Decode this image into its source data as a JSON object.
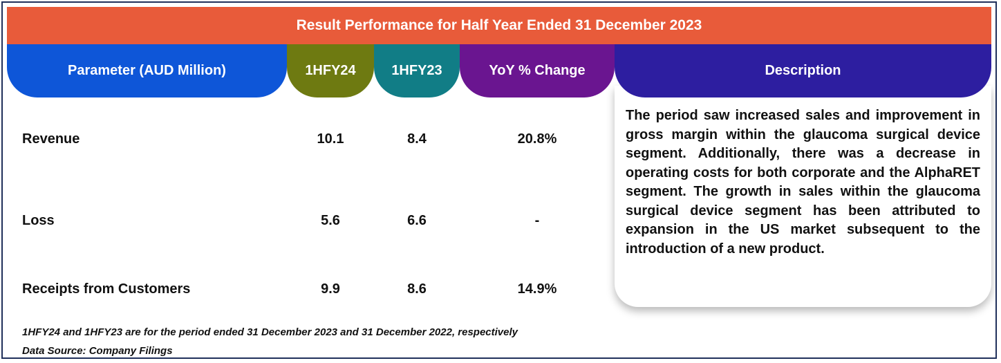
{
  "title": "Result Performance for Half Year Ended 31 December 2023",
  "headers": {
    "parameter": "Parameter (AUD Million)",
    "fy24": "1HFY24",
    "fy23": "1HFY23",
    "yoy": "YoY % Change",
    "description": "Description"
  },
  "rows": [
    {
      "label": "Revenue",
      "fy24": "10.1",
      "fy23": "8.4",
      "yoy": "20.8%"
    },
    {
      "label": "Loss",
      "fy24": "5.6",
      "fy23": "6.6",
      "yoy": "-"
    },
    {
      "label": "Receipts from Customers",
      "fy24": "9.9",
      "fy23": "8.6",
      "yoy": "14.9%"
    }
  ],
  "description": "The period saw increased sales and improvement in gross margin within the glaucoma surgical device segment. Additionally, there was a decrease in operating costs for both corporate and the AlphaRET segment. The growth in sales within the glaucoma surgical device segment has been attributed to expansion in the US market subsequent to the introduction of a new product.",
  "footnote": "1HFY24 and 1HFY23 are for the period ended 31 December 2023 and 31 December 2022, respectively",
  "source": "Data Source: Company Filings",
  "colors": {
    "banner": "#e85b3a",
    "parameter_header": "#0e56d8",
    "fy24_header": "#6e7a11",
    "fy23_header": "#117d86",
    "yoy_header": "#6a1590",
    "description_header": "#2d1ea0"
  }
}
